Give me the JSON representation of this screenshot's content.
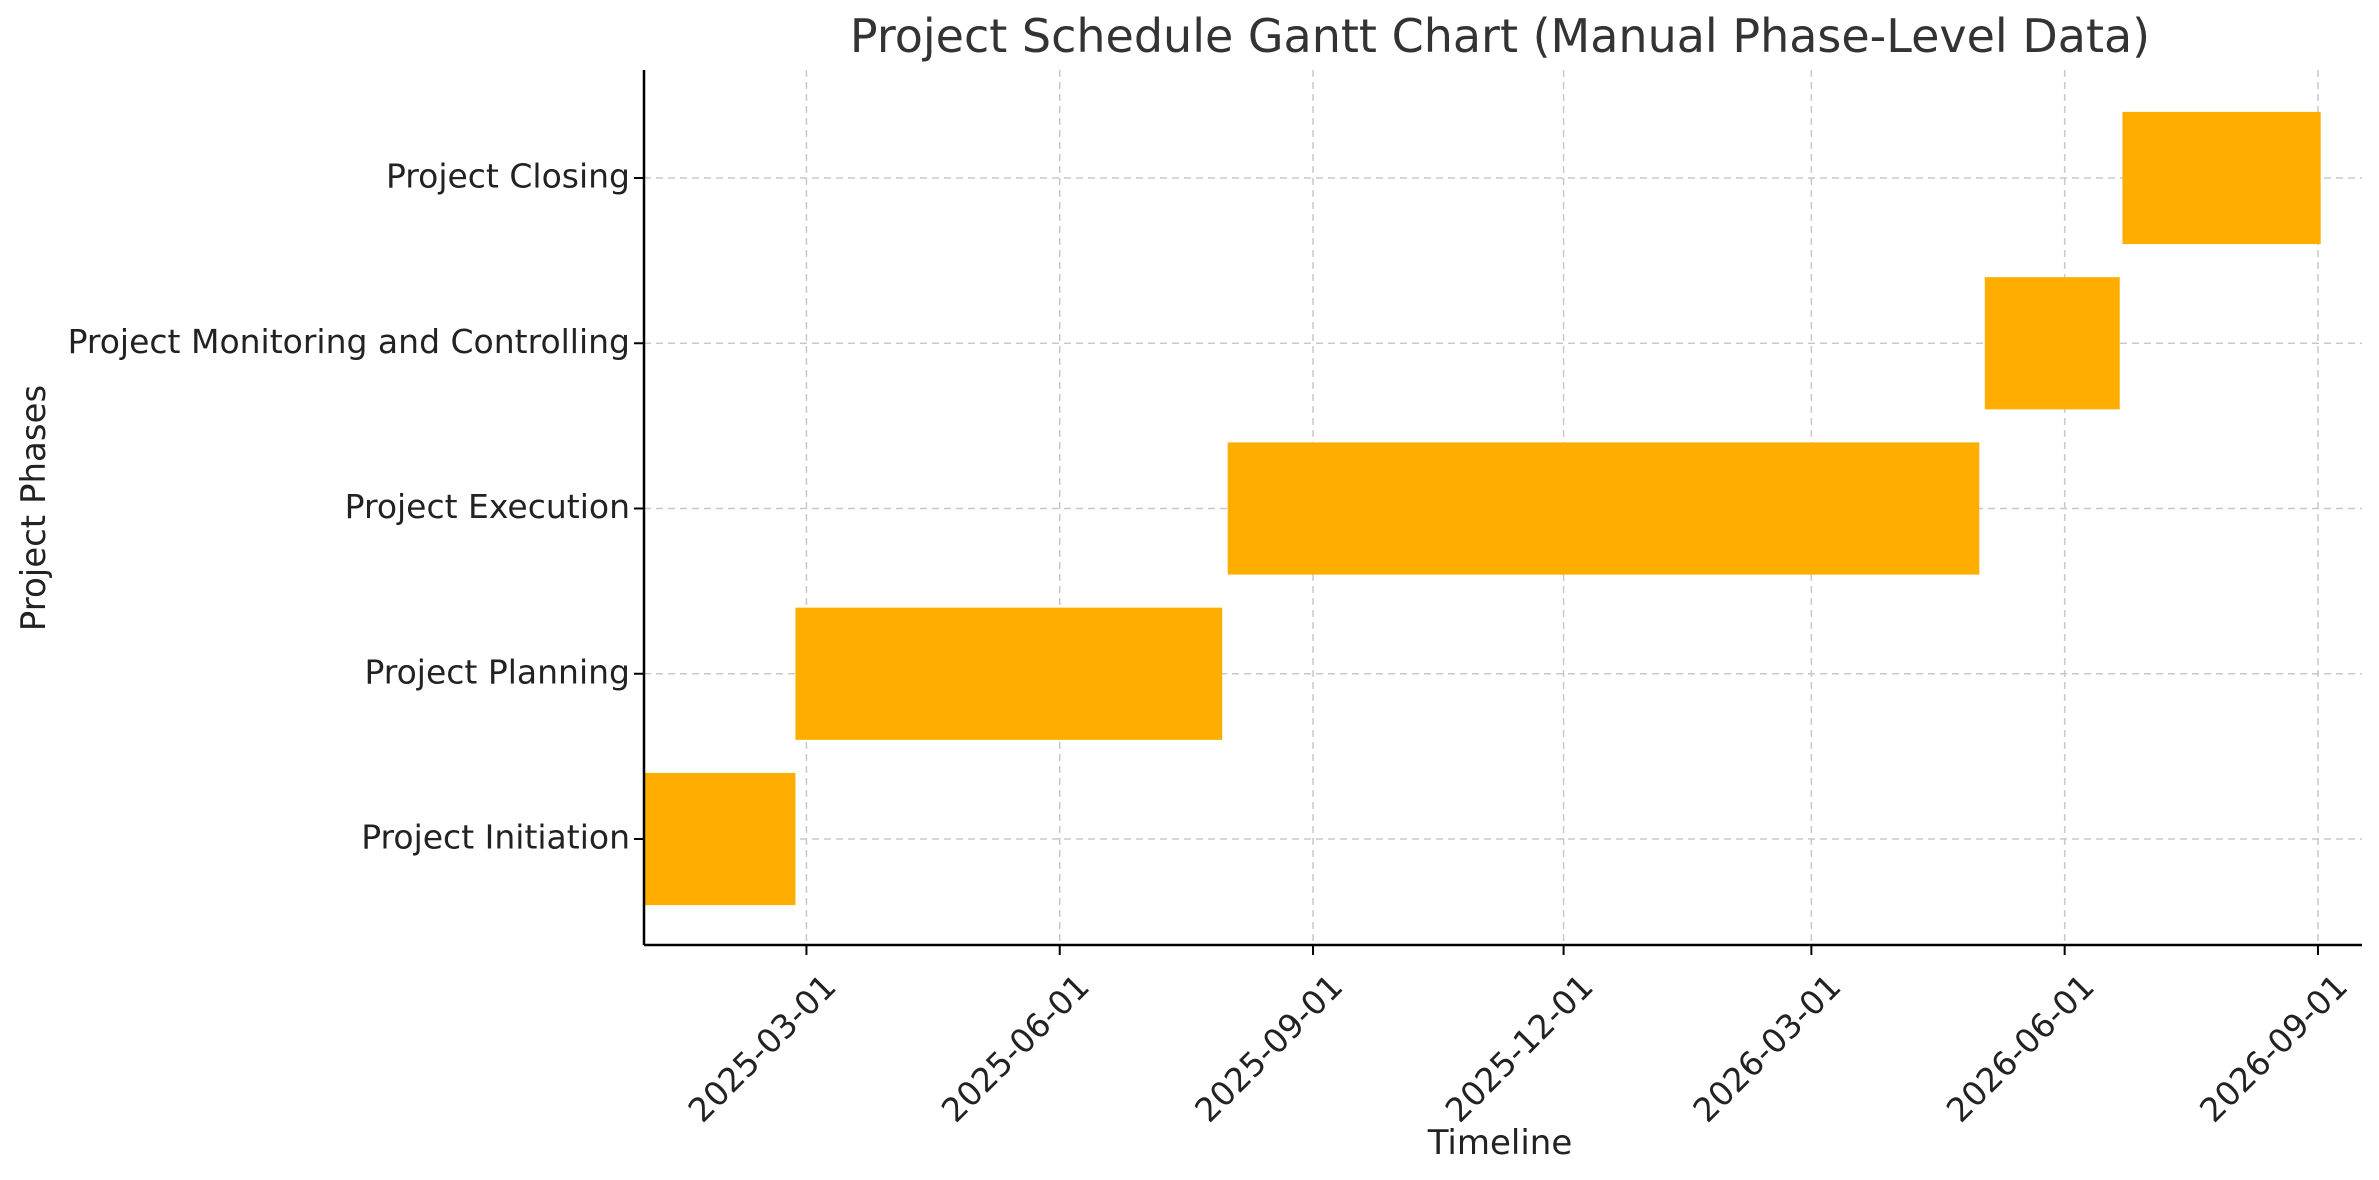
{
  "chart_data": {
    "type": "bar",
    "orientation": "horizontal-gantt",
    "title": "Project Schedule Gantt Chart (Manual Phase-Level Data)",
    "xlabel": "Timeline",
    "ylabel": "Project Phases",
    "bar_color": "#FFAE00",
    "grid": true,
    "xlim": [
      "2025-01-01",
      "2026-09-17"
    ],
    "x_ticks": [
      "2025-03-01",
      "2025-06-01",
      "2025-09-01",
      "2025-12-01",
      "2026-03-01",
      "2026-06-01",
      "2026-09-01"
    ],
    "categories": [
      "Project Initiation",
      "Project Planning",
      "Project Execution",
      "Project Monitoring and Controlling",
      "Project Closing"
    ],
    "tasks": [
      {
        "phase": "Project Initiation",
        "start": "2025-01-01",
        "end": "2025-02-25"
      },
      {
        "phase": "Project Planning",
        "start": "2025-02-25",
        "end": "2025-07-30"
      },
      {
        "phase": "Project Execution",
        "start": "2025-08-01",
        "end": "2026-05-01"
      },
      {
        "phase": "Project Monitoring and Controlling",
        "start": "2026-05-03",
        "end": "2026-06-21"
      },
      {
        "phase": "Project Closing",
        "start": "2026-06-22",
        "end": "2026-09-02"
      }
    ]
  }
}
